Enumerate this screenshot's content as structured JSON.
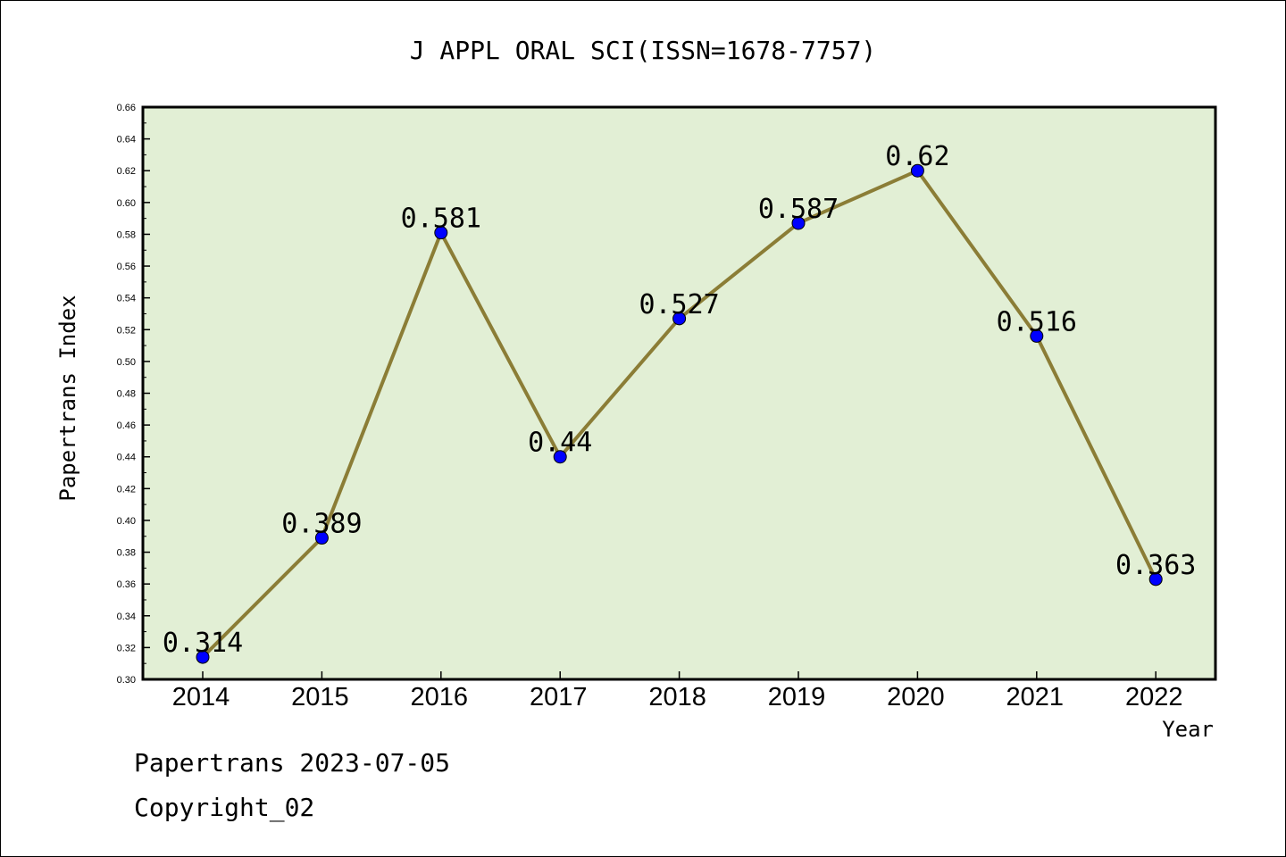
{
  "chart_data": {
    "type": "line",
    "title": "J APPL ORAL SCI(ISSN=1678-7757)",
    "xlabel": "Year",
    "ylabel": "Papertrans Index",
    "categories": [
      "2014",
      "2015",
      "2016",
      "2017",
      "2018",
      "2019",
      "2020",
      "2021",
      "2022"
    ],
    "values": [
      0.314,
      0.389,
      0.581,
      0.44,
      0.527,
      0.587,
      0.62,
      0.516,
      0.363
    ],
    "data_labels": [
      "0.314",
      "0.389",
      "0.581",
      "0.44",
      "0.527",
      "0.587",
      "0.62",
      "0.516",
      "0.363"
    ],
    "ylim": [
      0.3,
      0.66
    ],
    "yticks": [
      "0.30",
      "0.32",
      "0.34",
      "0.36",
      "0.38",
      "0.40",
      "0.42",
      "0.44",
      "0.46",
      "0.48",
      "0.50",
      "0.52",
      "0.54",
      "0.56",
      "0.58",
      "0.60",
      "0.62",
      "0.64",
      "0.66"
    ],
    "grid": false,
    "colors": {
      "plot_background": "#e2efd5",
      "line": "#8b7d36",
      "marker": "#0000ff"
    }
  },
  "footer": {
    "line1": "Papertrans 2023-07-05",
    "line2": "Copyright_02"
  }
}
